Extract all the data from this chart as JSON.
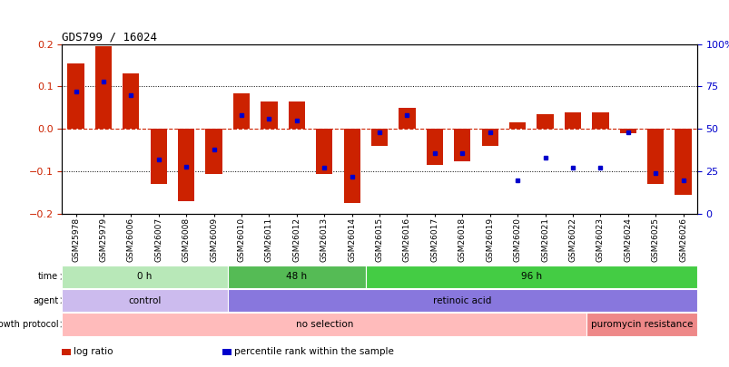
{
  "title": "GDS799 / 16024",
  "samples": [
    "GSM25978",
    "GSM25979",
    "GSM26006",
    "GSM26007",
    "GSM26008",
    "GSM26009",
    "GSM26010",
    "GSM26011",
    "GSM26012",
    "GSM26013",
    "GSM26014",
    "GSM26015",
    "GSM26016",
    "GSM26017",
    "GSM26018",
    "GSM26019",
    "GSM26020",
    "GSM26021",
    "GSM26022",
    "GSM26023",
    "GSM26024",
    "GSM26025",
    "GSM26026"
  ],
  "log_ratio": [
    0.155,
    0.195,
    0.13,
    -0.13,
    -0.17,
    -0.105,
    0.085,
    0.065,
    0.065,
    -0.105,
    -0.175,
    -0.04,
    0.05,
    -0.085,
    -0.075,
    -0.04,
    0.015,
    0.035,
    0.04,
    0.04,
    -0.01,
    -0.13,
    -0.155
  ],
  "percentile": [
    72,
    78,
    70,
    32,
    28,
    38,
    58,
    56,
    55,
    27,
    22,
    48,
    58,
    36,
    36,
    48,
    20,
    33,
    27,
    27,
    48,
    24,
    20
  ],
  "ylim": [
    -0.2,
    0.2
  ],
  "yticks_left": [
    -0.2,
    -0.1,
    0.0,
    0.1,
    0.2
  ],
  "yticks_right": [
    0,
    25,
    50,
    75,
    100
  ],
  "bar_color": "#cc2200",
  "dot_color": "#0000cc",
  "zero_line_color": "#cc2200",
  "grid_color": "#000000",
  "annotations": [
    {
      "label": "time",
      "groups": [
        {
          "text": "0 h",
          "start": 0,
          "end": 5,
          "color": "#b8e8b8"
        },
        {
          "text": "48 h",
          "start": 6,
          "end": 10,
          "color": "#55bb55"
        },
        {
          "text": "96 h",
          "start": 11,
          "end": 22,
          "color": "#44cc44"
        }
      ]
    },
    {
      "label": "agent",
      "groups": [
        {
          "text": "control",
          "start": 0,
          "end": 5,
          "color": "#ccbbee"
        },
        {
          "text": "retinoic acid",
          "start": 6,
          "end": 22,
          "color": "#8877dd"
        }
      ]
    },
    {
      "label": "growth protocol",
      "groups": [
        {
          "text": "no selection",
          "start": 0,
          "end": 18,
          "color": "#ffbbbb"
        },
        {
          "text": "puromycin resistance",
          "start": 19,
          "end": 22,
          "color": "#ee8888"
        }
      ]
    }
  ],
  "legend": [
    {
      "label": "log ratio",
      "color": "#cc2200"
    },
    {
      "label": "percentile rank within the sample",
      "color": "#0000cc"
    }
  ]
}
